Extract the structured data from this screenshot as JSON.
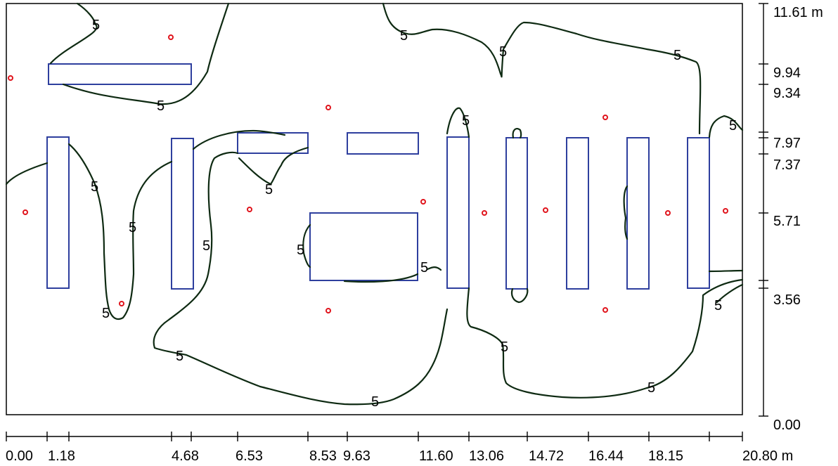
{
  "diagram": {
    "x_axis": {
      "ticks": [
        "0.00",
        "1.18",
        "4.68",
        "6.53",
        "8.53",
        "9.63",
        "11.60",
        "13.06",
        "14.72",
        "16.44",
        "18.15",
        "20.80 m"
      ]
    },
    "y_axis": {
      "ticks": [
        "11.61 m",
        "9.94",
        "9.34",
        "7.97",
        "7.37",
        "5.71",
        "3.56",
        "0.00"
      ]
    },
    "contour_level": "5",
    "contour_labels": [
      "5",
      "5",
      "5",
      "5",
      "5",
      "5",
      "5",
      "5",
      "5",
      "5",
      "5",
      "5",
      "5",
      "5",
      "5",
      "5",
      "5",
      "5",
      "5"
    ],
    "colors": {
      "fixture": "#2e3f9e",
      "contour": "#0e2a12",
      "calc_point": "#e0141c",
      "frame": "#000000"
    },
    "legend": {
      "fixture_shape": "luminaire-rectangle",
      "point_shape": "calculation-point"
    }
  }
}
